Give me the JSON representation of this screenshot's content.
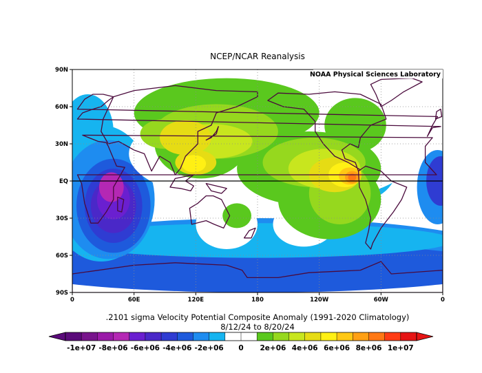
{
  "header": {
    "title": "NCEP/NCAR Reanalysis",
    "credit": "NOAA Physical Sciences Laboratory"
  },
  "caption": {
    "line1": ".2101 sigma Velocity Potential  Composite Anomaly (1991-2020 Climatology)",
    "line2": "8/12/24  to 8/20/24"
  },
  "axes": {
    "lat_labels": [
      "90N",
      "60N",
      "30N",
      "EQ",
      "30S",
      "60S",
      "90S"
    ],
    "lat_values": [
      90,
      60,
      30,
      0,
      -30,
      -60,
      -90
    ],
    "lon_labels": [
      "0",
      "60E",
      "120E",
      "180",
      "120W",
      "60W",
      "0"
    ],
    "lon_values": [
      0,
      60,
      120,
      180,
      240,
      300,
      360
    ]
  },
  "colorbar": {
    "tick_labels": [
      "-1e+07",
      "-8e+06",
      "-6e+06",
      "-4e+06",
      "-2e+06",
      "0",
      "2e+06",
      "4e+06",
      "6e+06",
      "8e+06",
      "1e+07"
    ],
    "tick_values": [
      -10000000,
      -8000000,
      -6000000,
      -4000000,
      -2000000,
      0,
      2000000,
      4000000,
      6000000,
      8000000,
      10000000
    ],
    "colors": [
      "#5a0a7a",
      "#78148c",
      "#9a1aa8",
      "#b428b4",
      "#6a1fd0",
      "#4a28c8",
      "#2f3cd2",
      "#1e5adc",
      "#1e8cf0",
      "#16b4f0",
      "#ffffff",
      "#ffffff",
      "#5ac81e",
      "#96d81e",
      "#c8e61e",
      "#e6dc14",
      "#fff014",
      "#ffc814",
      "#ffa014",
      "#ff7814",
      "#ff3c14",
      "#e61414"
    ]
  },
  "map_data": {
    "projection": "equirectangular",
    "lon_range": [
      0,
      360
    ],
    "lat_range": [
      -90,
      90
    ],
    "grid": true,
    "blobs": [
      {
        "c": 8,
        "lon": 180,
        "lat": -60,
        "rx": 240,
        "ry": 30
      },
      {
        "c": 7,
        "lon": 180,
        "lat": -70,
        "rx": 240,
        "ry": 20
      },
      {
        "c": 9,
        "lon": 180,
        "lat": -48,
        "rx": 190,
        "ry": 14
      },
      {
        "c": 9,
        "lon": 270,
        "lat": 10,
        "rx": 45,
        "ry": 28
      },
      {
        "c": 9,
        "lon": 15,
        "lat": 40,
        "rx": 25,
        "ry": 30
      },
      {
        "c": 9,
        "lon": 28,
        "lat": -10,
        "rx": 50,
        "ry": 55
      },
      {
        "c": 8,
        "lon": 35,
        "lat": -15,
        "rx": 45,
        "ry": 48
      },
      {
        "c": 7,
        "lon": 40,
        "lat": -20,
        "rx": 36,
        "ry": 38
      },
      {
        "c": 6,
        "lon": 40,
        "lat": -20,
        "rx": 28,
        "ry": 30
      },
      {
        "c": 5,
        "lon": 40,
        "lat": -20,
        "rx": 22,
        "ry": 22
      },
      {
        "c": 4,
        "lon": 40,
        "lat": -15,
        "rx": 16,
        "ry": 16
      },
      {
        "c": 3,
        "lon": 38,
        "lat": -5,
        "rx": 12,
        "ry": 12
      },
      {
        "c": 8,
        "lon": 355,
        "lat": -5,
        "rx": 20,
        "ry": 30
      },
      {
        "c": 6,
        "lon": 358,
        "lat": 0,
        "rx": 14,
        "ry": 20
      },
      {
        "c": 10,
        "lon": 195,
        "lat": 22,
        "rx": 140,
        "ry": 42
      },
      {
        "c": 10,
        "lon": 150,
        "lat": -35,
        "rx": 30,
        "ry": 20
      },
      {
        "c": 10,
        "lon": 225,
        "lat": -35,
        "rx": 30,
        "ry": 18
      },
      {
        "c": 12,
        "lon": 150,
        "lat": 55,
        "rx": 90,
        "ry": 28
      },
      {
        "c": 12,
        "lon": 125,
        "lat": 30,
        "rx": 45,
        "ry": 28
      },
      {
        "c": 12,
        "lon": 230,
        "lat": 10,
        "rx": 70,
        "ry": 30
      },
      {
        "c": 12,
        "lon": 250,
        "lat": -15,
        "rx": 50,
        "ry": 32
      },
      {
        "c": 12,
        "lon": 275,
        "lat": 45,
        "rx": 30,
        "ry": 22
      },
      {
        "c": 12,
        "lon": 160,
        "lat": -28,
        "rx": 14,
        "ry": 10
      },
      {
        "c": 13,
        "lon": 140,
        "lat": 40,
        "rx": 60,
        "ry": 22
      },
      {
        "c": 13,
        "lon": 235,
        "lat": 15,
        "rx": 50,
        "ry": 20
      },
      {
        "c": 13,
        "lon": 260,
        "lat": -10,
        "rx": 30,
        "ry": 25
      },
      {
        "c": 13,
        "lon": 90,
        "lat": 38,
        "rx": 24,
        "ry": 12
      },
      {
        "c": 14,
        "lon": 135,
        "lat": 32,
        "rx": 40,
        "ry": 14
      },
      {
        "c": 14,
        "lon": 245,
        "lat": 10,
        "rx": 35,
        "ry": 16
      },
      {
        "c": 15,
        "lon": 110,
        "lat": 35,
        "rx": 25,
        "ry": 14
      },
      {
        "c": 15,
        "lon": 255,
        "lat": 5,
        "rx": 25,
        "ry": 14
      },
      {
        "c": 15,
        "lon": 120,
        "lat": 15,
        "rx": 20,
        "ry": 10
      },
      {
        "c": 16,
        "lon": 265,
        "lat": 5,
        "rx": 16,
        "ry": 10
      },
      {
        "c": 16,
        "lon": 118,
        "lat": 14,
        "rx": 12,
        "ry": 7
      },
      {
        "c": 17,
        "lon": 270,
        "lat": 4,
        "rx": 11,
        "ry": 7
      },
      {
        "c": 18,
        "lon": 272,
        "lat": 3,
        "rx": 7,
        "ry": 5
      },
      {
        "c": 19,
        "lon": 272,
        "lat": 3,
        "rx": 4,
        "ry": 3
      }
    ],
    "land": [
      [
        [
          345,
          36
        ],
        [
          350,
          43
        ],
        [
          358,
          44
        ],
        [
          5,
          50
        ],
        [
          10,
          55
        ],
        [
          20,
          58
        ],
        [
          28,
          60
        ],
        [
          35,
          65
        ],
        [
          40,
          68
        ],
        [
          30,
          70
        ],
        [
          20,
          70
        ],
        [
          12,
          66
        ],
        [
          5,
          58
        ],
        [
          355,
          52
        ],
        [
          350,
          45
        ]
      ],
      [
        [
          343,
          28
        ],
        [
          350,
          35
        ],
        [
          10,
          37
        ],
        [
          25,
          32
        ],
        [
          33,
          31
        ],
        [
          35,
          28
        ],
        [
          43,
          12
        ],
        [
          51,
          11
        ],
        [
          40,
          -5
        ],
        [
          40,
          -15
        ],
        [
          33,
          -25
        ],
        [
          25,
          -34
        ],
        [
          18,
          -34
        ],
        [
          12,
          -18
        ],
        [
          9,
          -2
        ],
        [
          5,
          5
        ],
        [
          354,
          5
        ],
        [
          343,
          15
        ]
      ],
      [
        [
          35,
          30
        ],
        [
          45,
          32
        ],
        [
          60,
          25
        ],
        [
          70,
          22
        ],
        [
          77,
          8
        ],
        [
          85,
          20
        ],
        [
          95,
          15
        ],
        [
          100,
          5
        ],
        [
          105,
          10
        ],
        [
          110,
          20
        ],
        [
          122,
          30
        ],
        [
          122,
          40
        ],
        [
          135,
          45
        ],
        [
          140,
          55
        ],
        [
          160,
          60
        ],
        [
          180,
          68
        ],
        [
          180,
          72
        ],
        [
          140,
          73
        ],
        [
          100,
          77
        ],
        [
          60,
          73
        ],
        [
          40,
          68
        ],
        [
          30,
          50
        ],
        [
          28,
          40
        ]
      ],
      [
        [
          114,
          -22
        ],
        [
          122,
          -18
        ],
        [
          130,
          -12
        ],
        [
          137,
          -12
        ],
        [
          145,
          -15
        ],
        [
          153,
          -28
        ],
        [
          147,
          -38
        ],
        [
          138,
          -35
        ],
        [
          130,
          -32
        ],
        [
          116,
          -35
        ]
      ],
      [
        [
          190,
          65
        ],
        [
          200,
          71
        ],
        [
          230,
          70
        ],
        [
          255,
          72
        ],
        [
          280,
          70
        ],
        [
          300,
          62
        ],
        [
          305,
          50
        ],
        [
          290,
          45
        ],
        [
          280,
          35
        ],
        [
          278,
          27
        ],
        [
          270,
          30
        ],
        [
          262,
          25
        ],
        [
          265,
          18
        ],
        [
          275,
          15
        ],
        [
          278,
          8
        ],
        [
          280,
          9
        ],
        [
          268,
          15
        ],
        [
          255,
          20
        ],
        [
          244,
          30
        ],
        [
          236,
          40
        ],
        [
          236,
          48
        ],
        [
          225,
          58
        ],
        [
          205,
          60
        ]
      ],
      [
        [
          278,
          8
        ],
        [
          285,
          12
        ],
        [
          300,
          8
        ],
        [
          310,
          0
        ],
        [
          325,
          -5
        ],
        [
          320,
          -15
        ],
        [
          312,
          -25
        ],
        [
          300,
          -38
        ],
        [
          292,
          -50
        ],
        [
          290,
          -55
        ],
        [
          285,
          -50
        ],
        [
          288,
          -40
        ],
        [
          290,
          -30
        ],
        [
          285,
          -15
        ],
        [
          279,
          -5
        ]
      ],
      [
        [
          300,
          60
        ],
        [
          310,
          65
        ],
        [
          322,
          72
        ],
        [
          340,
          80
        ],
        [
          330,
          83
        ],
        [
          300,
          82
        ],
        [
          290,
          78
        ],
        [
          295,
          70
        ]
      ],
      [
        [
          0,
          -75
        ],
        [
          60,
          -68
        ],
        [
          100,
          -66
        ],
        [
          150,
          -68
        ],
        [
          165,
          -72
        ],
        [
          170,
          -78
        ],
        [
          200,
          -78
        ],
        [
          230,
          -74
        ],
        [
          280,
          -72
        ],
        [
          300,
          -65
        ],
        [
          310,
          -75
        ],
        [
          360,
          -72
        ],
        [
          360,
          -90
        ],
        [
          0,
          -90
        ]
      ],
      [
        [
          44,
          -13
        ],
        [
          50,
          -15
        ],
        [
          48,
          -25
        ],
        [
          44,
          -24
        ]
      ],
      [
        [
          130,
          33
        ],
        [
          135,
          35
        ],
        [
          140,
          40
        ],
        [
          142,
          44
        ],
        [
          140,
          38
        ]
      ],
      [
        [
          353,
          50
        ],
        [
          359,
          52
        ],
        [
          358,
          58
        ],
        [
          354,
          56
        ]
      ],
      [
        [
          95,
          -5
        ],
        [
          105,
          -6
        ],
        [
          115,
          -8
        ],
        [
          118,
          -4
        ],
        [
          110,
          0
        ],
        [
          118,
          5
        ],
        [
          100,
          2
        ]
      ],
      [
        [
          130,
          -2
        ],
        [
          150,
          -6
        ],
        [
          145,
          -10
        ],
        [
          135,
          -8
        ]
      ],
      [
        [
          172,
          -40
        ],
        [
          178,
          -38
        ],
        [
          174,
          -46
        ],
        [
          167,
          -46
        ]
      ]
    ]
  }
}
